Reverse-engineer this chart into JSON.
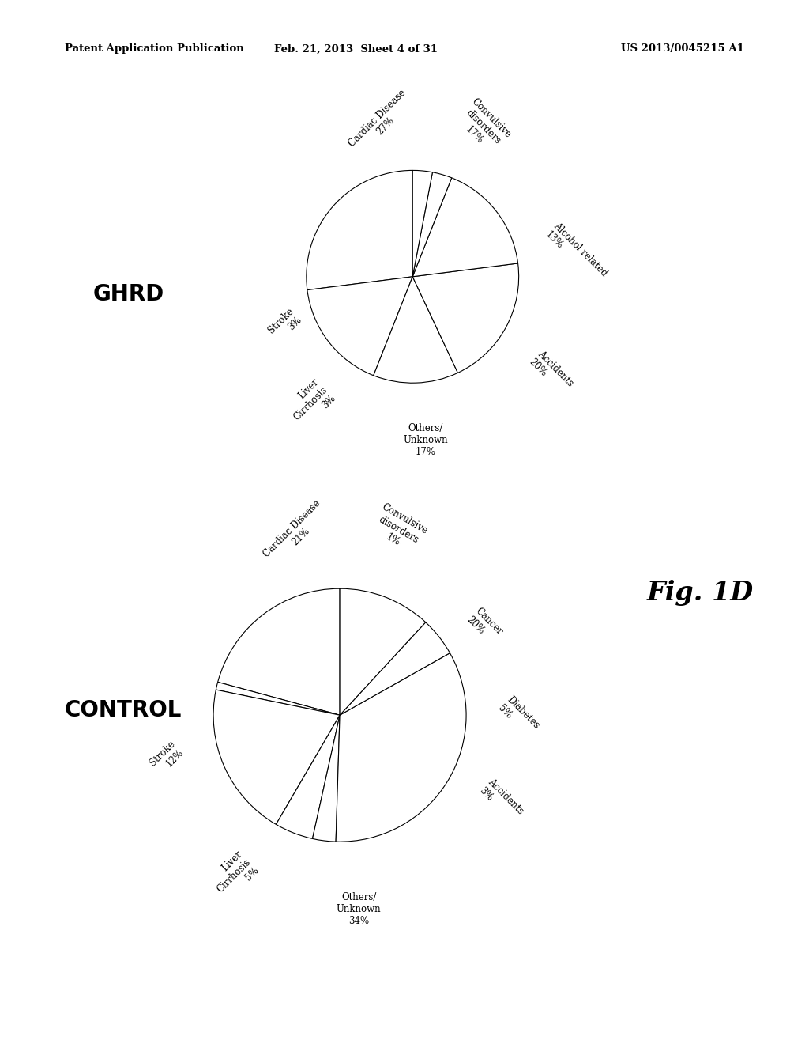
{
  "header_left": "Patent Application Publication",
  "header_center": "Feb. 21, 2013  Sheet 4 of 31",
  "header_right": "US 2013/0045215 A1",
  "fig_label": "Fig. 1D",
  "ghrd_label": "GHRD",
  "control_label": "CONTROL",
  "ghrd_data": {
    "values": [
      27,
      17,
      13,
      20,
      17,
      3,
      3
    ],
    "startangle": 90
  },
  "control_data": {
    "values": [
      21,
      1,
      20,
      5,
      3,
      34,
      5,
      12
    ],
    "startangle": 90
  },
  "pie_color": "white",
  "pie_edgecolor": "black",
  "background_color": "white",
  "text_color": "black",
  "header_fontsize": 9.5,
  "label_fontsize": 8.5,
  "title_fontsize": 20
}
